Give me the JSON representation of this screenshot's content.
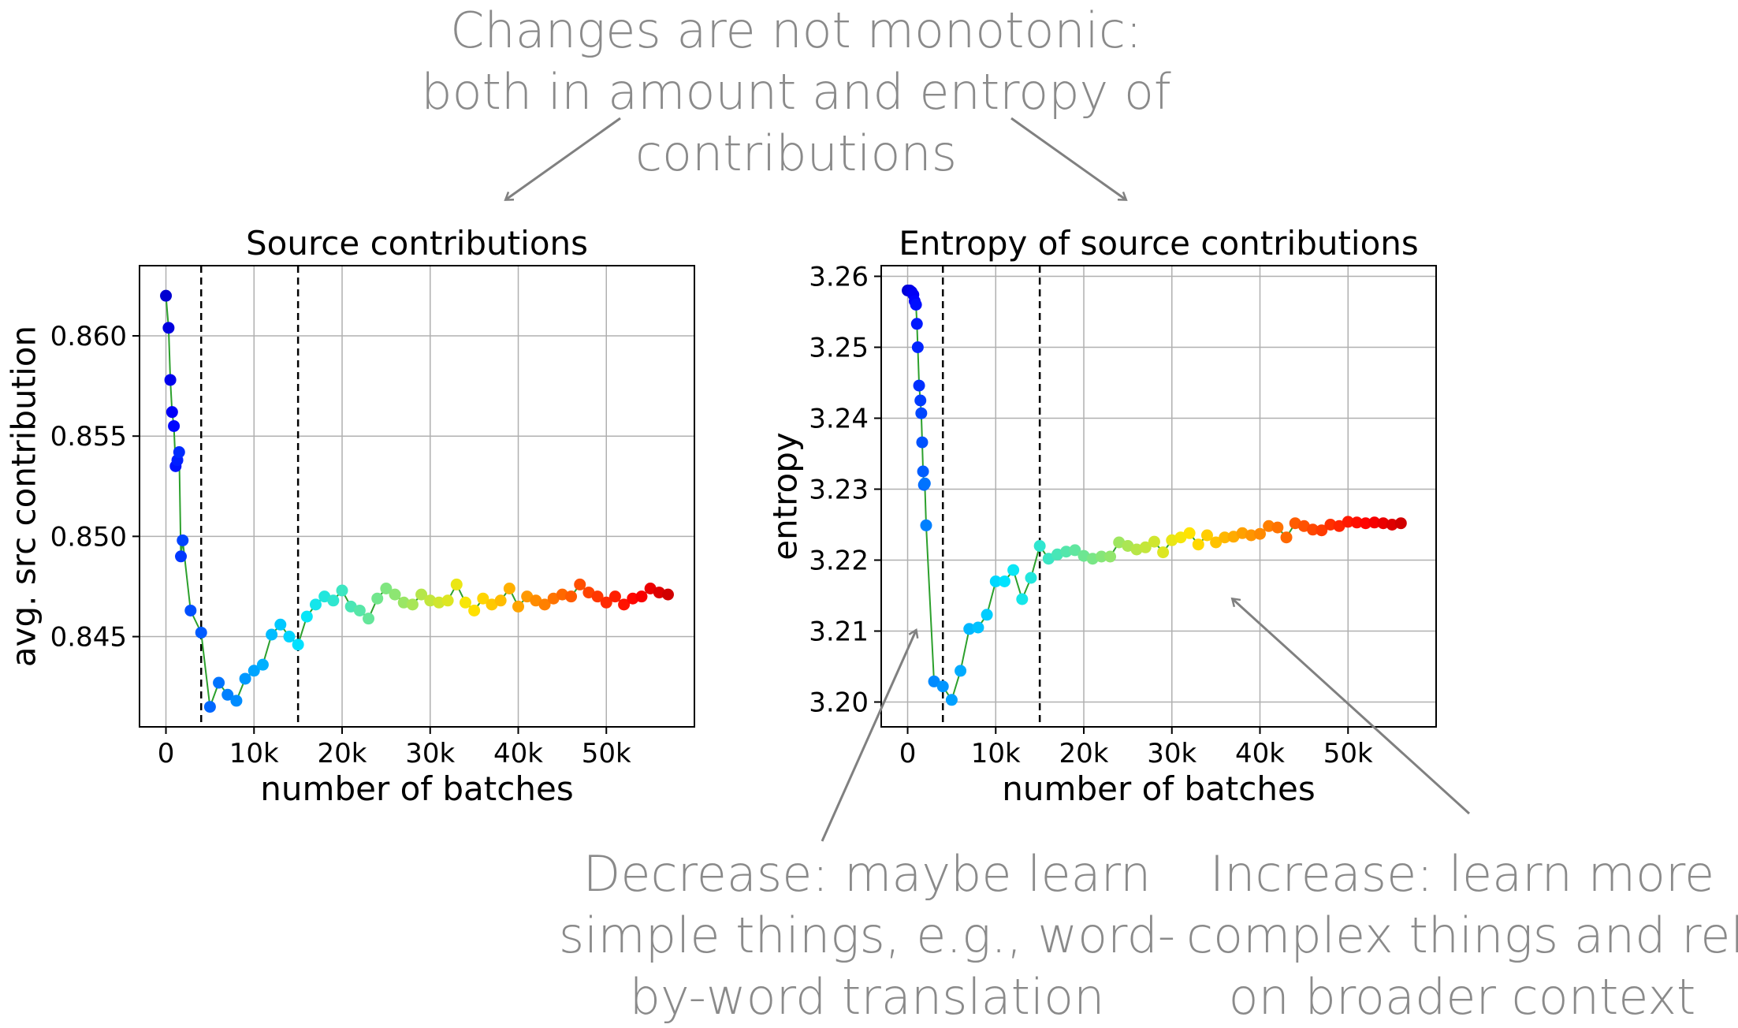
{
  "annotations": {
    "top": [
      "Changes are not monotonic:",
      "both in amount and entropy of",
      "contributions"
    ],
    "bottom_left": [
      "Decrease: maybe learn",
      "simple things, e.g., word-",
      "by-word translation"
    ],
    "bottom_right": [
      "Increase: learn more",
      "complex things and rely",
      "on broader context"
    ]
  },
  "colors": {
    "annotation": "#8a8a8a",
    "connector": "#2ca02c",
    "grid": "#b0b0b0",
    "arrow": "#808080"
  },
  "chart_data": [
    {
      "type": "scatter",
      "title": "Source contributions",
      "xlabel": "number of batches",
      "ylabel": "avg. src contribution",
      "xlim": [
        -3000,
        60000
      ],
      "ylim": [
        0.8405,
        0.8635
      ],
      "xticks": [
        0,
        10000,
        20000,
        30000,
        40000,
        50000
      ],
      "xtick_labels": [
        "0",
        "10k",
        "20k",
        "30k",
        "40k",
        "50k"
      ],
      "yticks": [
        0.845,
        0.85,
        0.855,
        0.86
      ],
      "ytick_labels": [
        "0.845",
        "0.850",
        "0.855",
        "0.860"
      ],
      "vlines": [
        4000,
        15000
      ],
      "grid": true,
      "x": [
        0,
        300,
        500,
        700,
        900,
        1100,
        1300,
        1500,
        1700,
        1900,
        2800,
        4000,
        5000,
        6000,
        7000,
        8000,
        9000,
        10000,
        11000,
        12000,
        13000,
        14000,
        15000,
        16000,
        17000,
        18000,
        19000,
        20000,
        21000,
        22000,
        23000,
        24000,
        25000,
        26000,
        27000,
        28000,
        29000,
        30000,
        31000,
        32000,
        33000,
        34000,
        35000,
        36000,
        37000,
        38000,
        39000,
        40000,
        41000,
        42000,
        43000,
        44000,
        45000,
        46000,
        47000,
        48000,
        49000,
        50000,
        51000,
        52000,
        53000,
        54000,
        55000,
        56000,
        57000
      ],
      "y": [
        0.862,
        0.8604,
        0.8578,
        0.8562,
        0.8555,
        0.8535,
        0.8538,
        0.8542,
        0.849,
        0.8498,
        0.8463,
        0.8452,
        0.8415,
        0.8427,
        0.8421,
        0.8418,
        0.8429,
        0.8433,
        0.8436,
        0.8451,
        0.8456,
        0.845,
        0.8446,
        0.846,
        0.8466,
        0.847,
        0.8468,
        0.8473,
        0.8465,
        0.8463,
        0.8459,
        0.8469,
        0.8474,
        0.8471,
        0.8467,
        0.8466,
        0.8471,
        0.8468,
        0.8467,
        0.8468,
        0.8476,
        0.8467,
        0.8463,
        0.8469,
        0.8466,
        0.8468,
        0.8474,
        0.8465,
        0.847,
        0.8468,
        0.8466,
        0.8469,
        0.8471,
        0.847,
        0.8476,
        0.8472,
        0.847,
        0.8467,
        0.847,
        0.8466,
        0.8469,
        0.847,
        0.8474,
        0.8472,
        0.8471
      ]
    },
    {
      "type": "scatter",
      "title": "Entropy of source contributions",
      "xlabel": "number of batches",
      "ylabel": "entropy",
      "xlim": [
        -3000,
        60000
      ],
      "ylim": [
        3.1965,
        3.2615
      ],
      "xticks": [
        0,
        10000,
        20000,
        30000,
        40000,
        50000
      ],
      "xtick_labels": [
        "0",
        "10k",
        "20k",
        "30k",
        "40k",
        "50k"
      ],
      "yticks": [
        3.2,
        3.21,
        3.22,
        3.23,
        3.24,
        3.25,
        3.26
      ],
      "ytick_labels": [
        "3.20",
        "3.21",
        "3.22",
        "3.23",
        "3.24",
        "3.25",
        "3.26"
      ],
      "vlines": [
        4000,
        15000
      ],
      "grid": true,
      "x": [
        0,
        250,
        450,
        650,
        800,
        950,
        1050,
        1150,
        1300,
        1450,
        1550,
        1650,
        1750,
        1850,
        1950,
        2100,
        3000,
        4000,
        5000,
        6000,
        7000,
        8000,
        9000,
        10000,
        11000,
        12000,
        13000,
        14000,
        15000,
        16000,
        17000,
        18000,
        19000,
        20000,
        21000,
        22000,
        23000,
        24000,
        25000,
        26000,
        27000,
        28000,
        29000,
        30000,
        31000,
        32000,
        33000,
        34000,
        35000,
        36000,
        37000,
        38000,
        39000,
        40000,
        41000,
        42000,
        43000,
        44000,
        45000,
        46000,
        47000,
        48000,
        49000,
        50000,
        51000,
        52000,
        53000,
        54000,
        55000,
        56000
      ],
      "y": [
        3.258,
        3.258,
        3.2578,
        3.2574,
        3.2565,
        3.256,
        3.2533,
        3.25,
        3.2446,
        3.2425,
        3.2407,
        3.2366,
        3.2325,
        3.2306,
        3.2308,
        3.2249,
        3.2029,
        3.2022,
        3.2003,
        3.2044,
        3.2103,
        3.2105,
        3.2123,
        3.217,
        3.217,
        3.2186,
        3.2145,
        3.2175,
        3.222,
        3.2202,
        3.2208,
        3.2212,
        3.2214,
        3.2206,
        3.2202,
        3.2205,
        3.2205,
        3.2225,
        3.222,
        3.2215,
        3.2218,
        3.2226,
        3.2211,
        3.2228,
        3.2232,
        3.2238,
        3.2222,
        3.2235,
        3.2225,
        3.2232,
        3.2233,
        3.2238,
        3.2235,
        3.2237,
        3.2248,
        3.2246,
        3.2232,
        3.2252,
        3.2248,
        3.2243,
        3.2242,
        3.225,
        3.2248,
        3.2254,
        3.2253,
        3.2252,
        3.2253,
        3.2252,
        3.225,
        3.2252
      ]
    }
  ]
}
